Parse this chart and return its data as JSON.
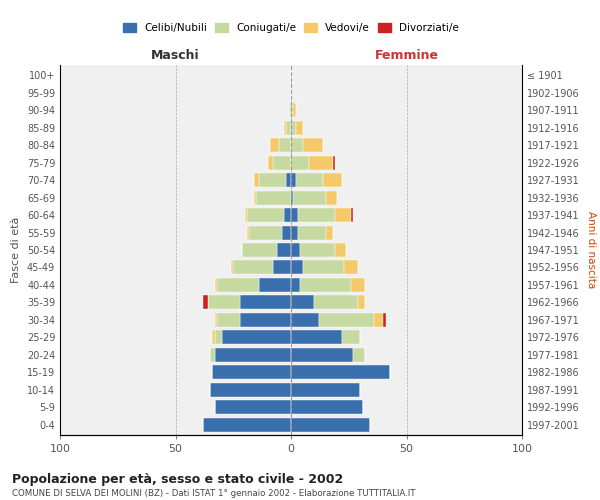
{
  "age_groups": [
    "0-4",
    "5-9",
    "10-14",
    "15-19",
    "20-24",
    "25-29",
    "30-34",
    "35-39",
    "40-44",
    "45-49",
    "50-54",
    "55-59",
    "60-64",
    "65-69",
    "70-74",
    "75-79",
    "80-84",
    "85-89",
    "90-94",
    "95-99",
    "100+"
  ],
  "birth_years": [
    "1997-2001",
    "1992-1996",
    "1987-1991",
    "1982-1986",
    "1977-1981",
    "1972-1976",
    "1967-1971",
    "1962-1966",
    "1957-1961",
    "1952-1956",
    "1947-1951",
    "1942-1946",
    "1937-1941",
    "1932-1936",
    "1927-1931",
    "1922-1926",
    "1917-1921",
    "1912-1916",
    "1907-1911",
    "1902-1906",
    "≤ 1901"
  ],
  "males": {
    "celibi": [
      38,
      33,
      35,
      34,
      33,
      30,
      22,
      22,
      14,
      8,
      6,
      4,
      3,
      0,
      2,
      0,
      0,
      0,
      0,
      0,
      0
    ],
    "coniugati": [
      0,
      0,
      0,
      0,
      2,
      3,
      10,
      14,
      18,
      17,
      15,
      14,
      16,
      15,
      12,
      8,
      5,
      2,
      1,
      0,
      0
    ],
    "vedovi": [
      0,
      0,
      0,
      0,
      0,
      1,
      1,
      0,
      1,
      1,
      0,
      1,
      1,
      1,
      2,
      2,
      4,
      1,
      0,
      0,
      0
    ],
    "divorziati": [
      0,
      0,
      0,
      0,
      0,
      0,
      0,
      2,
      0,
      0,
      0,
      0,
      0,
      0,
      0,
      0,
      0,
      0,
      0,
      0,
      0
    ]
  },
  "females": {
    "nubili": [
      34,
      31,
      30,
      43,
      27,
      22,
      12,
      10,
      4,
      5,
      4,
      3,
      3,
      1,
      2,
      0,
      0,
      0,
      0,
      0,
      0
    ],
    "coniugate": [
      0,
      0,
      0,
      0,
      5,
      8,
      24,
      19,
      22,
      18,
      15,
      12,
      16,
      14,
      12,
      8,
      5,
      2,
      1,
      0,
      0
    ],
    "vedove": [
      0,
      0,
      0,
      0,
      0,
      0,
      4,
      3,
      6,
      6,
      5,
      3,
      7,
      5,
      8,
      10,
      9,
      3,
      1,
      0,
      0
    ],
    "divorziate": [
      0,
      0,
      0,
      0,
      0,
      0,
      1,
      0,
      0,
      0,
      0,
      0,
      1,
      0,
      0,
      1,
      0,
      0,
      0,
      0,
      0
    ]
  },
  "colors": {
    "celibi": "#3a6fad",
    "coniugati": "#c5d9a0",
    "vedovi": "#f5c96a",
    "divorziati": "#cc2222"
  },
  "title": "Popolazione per età, sesso e stato civile - 2002",
  "subtitle": "COMUNE DI SELVA DEI MOLINI (BZ) - Dati ISTAT 1° gennaio 2002 - Elaborazione TUTTITALIA.IT",
  "xlabel_left": "Maschi",
  "xlabel_right": "Femmine",
  "ylabel_left": "Fasce di età",
  "ylabel_right": "Anni di nascita",
  "xlim": 100,
  "bg_color": "#ffffff",
  "plot_bg": "#f0f0f0",
  "grid_color": "#cccccc",
  "legend_labels": [
    "Celibi/Nubili",
    "Coniugati/e",
    "Vedovi/e",
    "Divorziati/e"
  ]
}
